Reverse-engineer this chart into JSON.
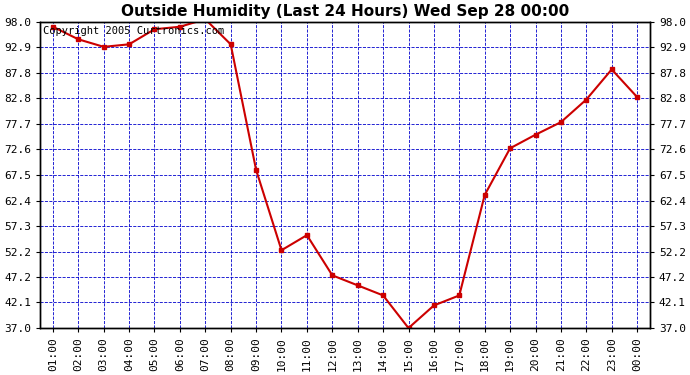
{
  "title": "Outside Humidity (Last 24 Hours) Wed Sep 28 00:00",
  "copyright": "Copyright 2005 Curtronics.com",
  "x_labels": [
    "01:00",
    "02:00",
    "03:00",
    "04:00",
    "05:00",
    "06:00",
    "07:00",
    "08:00",
    "09:00",
    "10:00",
    "11:00",
    "12:00",
    "13:00",
    "14:00",
    "15:00",
    "16:00",
    "17:00",
    "18:00",
    "19:00",
    "20:00",
    "21:00",
    "22:00",
    "23:00",
    "00:00"
  ],
  "y_values": [
    97.0,
    94.5,
    93.0,
    93.5,
    96.5,
    97.0,
    98.5,
    93.5,
    68.5,
    52.5,
    55.5,
    47.5,
    45.5,
    43.5,
    37.0,
    41.5,
    43.5,
    63.5,
    72.8,
    75.5,
    78.0,
    82.5,
    88.5,
    83.0
  ],
  "ylim": [
    37.0,
    98.0
  ],
  "ytick_values": [
    37.0,
    42.1,
    47.2,
    52.2,
    57.3,
    62.4,
    67.5,
    72.6,
    77.7,
    82.8,
    87.8,
    92.9,
    98.0
  ],
  "ytick_labels": [
    "37.0",
    "42.1",
    "47.2",
    "52.2",
    "57.3",
    "62.4",
    "67.5",
    "72.6",
    "77.7",
    "82.8",
    "87.8",
    "92.9",
    "98.0"
  ],
  "line_color": "#cc0000",
  "marker_color": "#cc0000",
  "bg_color": "#ffffff",
  "plot_bg_color": "#ffffff",
  "grid_color": "#0000cc",
  "title_fontsize": 11,
  "tick_fontsize": 8,
  "copyright_fontsize": 7.5
}
